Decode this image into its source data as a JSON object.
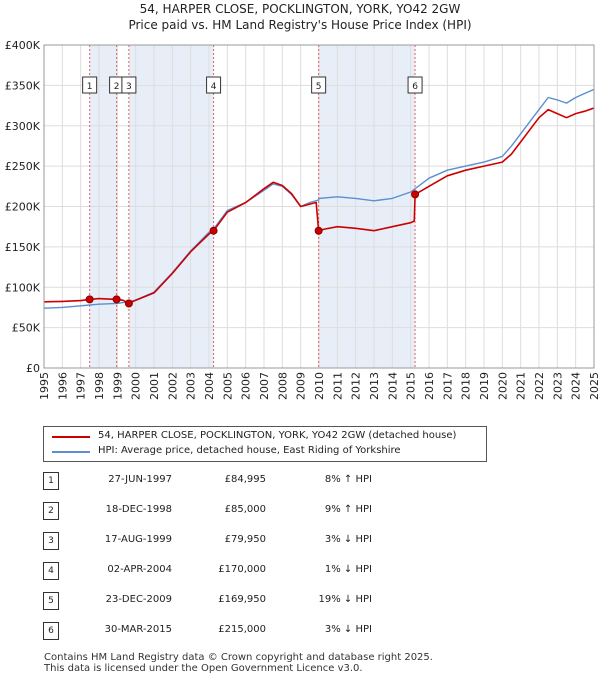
{
  "title_line1": "54, HARPER CLOSE, POCKLINGTON, YORK, YO42 2GW",
  "title_line2": "Price paid vs. HM Land Registry's House Price Index (HPI)",
  "colors": {
    "price_paid": "#cc0000",
    "hpi": "#5b8fd0",
    "shade": "#e8eef8",
    "marker_border": "#333333",
    "dashed": "#e06060"
  },
  "legend": {
    "price_paid_label": "54, HARPER CLOSE, POCKLINGTON, YORK, YO42 2GW (detached house)",
    "hpi_label": "HPI: Average price, detached house, East Riding of Yorkshire"
  },
  "chart_data": {
    "type": "line",
    "x_range": [
      1995,
      2025
    ],
    "ylim": [
      0,
      400000
    ],
    "y_ticks": [
      0,
      50000,
      100000,
      150000,
      200000,
      250000,
      300000,
      350000,
      400000
    ],
    "y_tick_labels": [
      "£0",
      "£50K",
      "£100K",
      "£150K",
      "£200K",
      "£250K",
      "£300K",
      "£350K",
      "£400K"
    ],
    "x_ticks": [
      "1995",
      "1996",
      "1997",
      "1998",
      "1999",
      "2000",
      "2001",
      "2002",
      "2003",
      "2004",
      "2005",
      "2006",
      "2007",
      "2008",
      "2009",
      "2010",
      "2011",
      "2012",
      "2013",
      "2014",
      "2015",
      "2016",
      "2017",
      "2018",
      "2019",
      "2020",
      "2021",
      "2022",
      "2023",
      "2024",
      "2025"
    ],
    "shaded_periods": [
      [
        1997.49,
        1998.96
      ],
      [
        1999.63,
        2004.25
      ],
      [
        2009.98,
        2015.24
      ]
    ],
    "sales": [
      {
        "label": "1",
        "x": 1997.49,
        "price": 84995
      },
      {
        "label": "2",
        "x": 1998.96,
        "price": 85000
      },
      {
        "label": "3",
        "x": 1999.63,
        "price": 79950
      },
      {
        "label": "4",
        "x": 2004.25,
        "price": 170000
      },
      {
        "label": "5",
        "x": 2009.98,
        "price": 169950
      },
      {
        "label": "6",
        "x": 2015.24,
        "price": 215000
      }
    ],
    "series": [
      {
        "name": "HPI: Average price, detached house, East Riding of Yorkshire",
        "x": [
          1995,
          1996,
          1997,
          1997.5,
          1998,
          1999,
          1999.6,
          2000,
          2001,
          2002,
          2003,
          2004,
          2004.25,
          2005,
          2006,
          2007,
          2007.5,
          2008,
          2008.5,
          2009,
          2009.5,
          2009.98,
          2010,
          2011,
          2012,
          2013,
          2014,
          2015,
          2015.24,
          2016,
          2017,
          2018,
          2019,
          2020,
          2020.5,
          2021,
          2021.5,
          2022,
          2022.5,
          2023,
          2023.5,
          2024,
          2024.5,
          2025
        ],
        "values": [
          74000,
          75000,
          77000,
          78000,
          79000,
          80000,
          82000,
          84000,
          94000,
          118000,
          145000,
          168000,
          172000,
          195000,
          205000,
          220000,
          228000,
          225000,
          215000,
          200000,
          205000,
          208000,
          210000,
          212000,
          210000,
          207000,
          210000,
          218000,
          222000,
          235000,
          245000,
          250000,
          255000,
          262000,
          275000,
          290000,
          305000,
          320000,
          335000,
          332000,
          328000,
          335000,
          340000,
          345000
        ]
      },
      {
        "name": "54, HARPER CLOSE, POCKLINGTON, YORK, YO42 2GW (detached house)",
        "x": [
          1995,
          1996,
          1997,
          1997.49,
          1998,
          1998.96,
          1999.3,
          1999.63,
          2000,
          2001,
          2002,
          2003,
          2004,
          2004.25,
          2005,
          2006,
          2007,
          2007.5,
          2008,
          2008.5,
          2009,
          2009.5,
          2009.85,
          2009.98,
          2010.3,
          2011,
          2012,
          2013,
          2014,
          2015,
          2015.2,
          2015.24,
          2016,
          2017,
          2018,
          2019,
          2020,
          2020.5,
          2021,
          2021.5,
          2022,
          2022.5,
          2023,
          2023.5,
          2024,
          2024.5,
          2025
        ],
        "values": [
          82000,
          82500,
          83500,
          84995,
          86000,
          85000,
          84000,
          79950,
          84000,
          93000,
          117000,
          144000,
          166000,
          170000,
          193000,
          205000,
          222000,
          230000,
          226000,
          216000,
          200000,
          203000,
          205000,
          169950,
          172000,
          175000,
          173000,
          170000,
          175000,
          180000,
          182000,
          215000,
          225000,
          238000,
          245000,
          250000,
          255000,
          265000,
          280000,
          295000,
          310000,
          320000,
          315000,
          310000,
          315000,
          318000,
          322000
        ]
      }
    ]
  },
  "sales_table": [
    {
      "num": "1",
      "date": "27-JUN-1997",
      "price": "£84,995",
      "hpi": "8% ↑ HPI"
    },
    {
      "num": "2",
      "date": "18-DEC-1998",
      "price": "£85,000",
      "hpi": "9% ↑ HPI"
    },
    {
      "num": "3",
      "date": "17-AUG-1999",
      "price": "£79,950",
      "hpi": "3% ↓ HPI"
    },
    {
      "num": "4",
      "date": "02-APR-2004",
      "price": "£170,000",
      "hpi": "1% ↓ HPI"
    },
    {
      "num": "5",
      "date": "23-DEC-2009",
      "price": "£169,950",
      "hpi": "19% ↓ HPI"
    },
    {
      "num": "6",
      "date": "30-MAR-2015",
      "price": "£215,000",
      "hpi": "3% ↓ HPI"
    }
  ],
  "footer_line1": "Contains HM Land Registry data © Crown copyright and database right 2025.",
  "footer_line2": "This data is licensed under the Open Government Licence v3.0."
}
